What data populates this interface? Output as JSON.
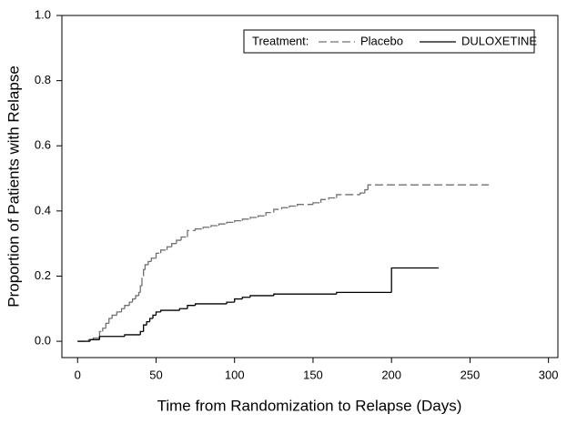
{
  "chart_data": {
    "type": "step",
    "x_label": "Time from Randomization to Relapse (Days)",
    "y_label": "Proportion of Patients with Relapse",
    "legend_title": "Treatment:",
    "legend_position": "top-right",
    "grid": false,
    "xlim": [
      -10,
      306
    ],
    "ylim": [
      -0.05,
      1.0
    ],
    "xticks": [
      0,
      50,
      100,
      150,
      200,
      250,
      300
    ],
    "yticks": [
      {
        "value": 0,
        "label": "0.0"
      },
      0.2,
      0.4,
      0.6,
      0.8,
      {
        "value": 1,
        "label": "1.0"
      }
    ],
    "series": [
      {
        "name": "Placebo",
        "color": "#707070",
        "line_style": "dashed",
        "x": [
          0,
          7,
          10,
          14,
          16,
          18,
          20,
          22,
          25,
          28,
          30,
          33,
          35,
          37,
          39,
          40,
          41,
          42,
          43,
          45,
          47,
          50,
          53,
          57,
          60,
          63,
          66,
          70,
          75,
          80,
          85,
          90,
          95,
          100,
          105,
          110,
          115,
          120,
          125,
          130,
          135,
          140,
          150,
          155,
          160,
          165,
          180,
          183,
          185,
          262
        ],
        "values": [
          0,
          0.005,
          0.01,
          0.03,
          0.04,
          0.055,
          0.07,
          0.08,
          0.09,
          0.1,
          0.11,
          0.12,
          0.13,
          0.14,
          0.15,
          0.17,
          0.2,
          0.22,
          0.235,
          0.245,
          0.255,
          0.27,
          0.28,
          0.29,
          0.3,
          0.31,
          0.32,
          0.34,
          0.345,
          0.35,
          0.355,
          0.36,
          0.365,
          0.37,
          0.375,
          0.38,
          0.385,
          0.395,
          0.405,
          0.41,
          0.415,
          0.42,
          0.425,
          0.435,
          0.44,
          0.45,
          0.455,
          0.465,
          0.48,
          0.48
        ]
      },
      {
        "name": "DULOXETINE",
        "color": "#000000",
        "line_style": "solid",
        "x": [
          0,
          8,
          14,
          30,
          40,
          42,
          44,
          46,
          48,
          50,
          53,
          65,
          70,
          75,
          95,
          100,
          105,
          110,
          125,
          165,
          200,
          230
        ],
        "values": [
          0,
          0.005,
          0.015,
          0.02,
          0.03,
          0.05,
          0.06,
          0.07,
          0.08,
          0.09,
          0.095,
          0.1,
          0.11,
          0.115,
          0.12,
          0.13,
          0.135,
          0.14,
          0.145,
          0.15,
          0.225,
          0.225
        ]
      }
    ]
  }
}
